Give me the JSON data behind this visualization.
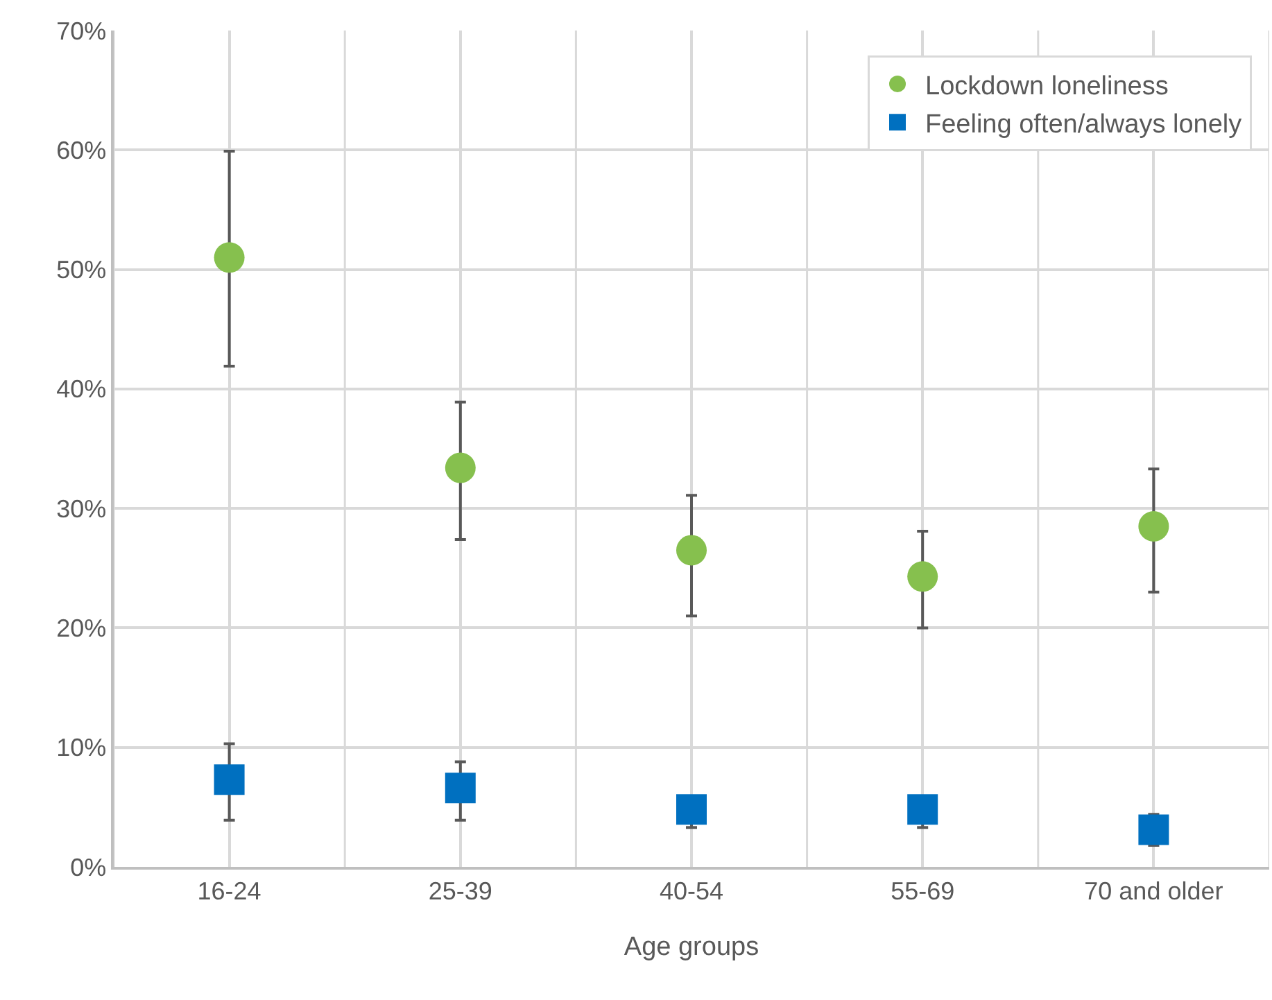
{
  "chart_data": {
    "type": "scatter",
    "xlabel": "Age groups",
    "categories": [
      "16-24",
      "25-39",
      "40-54",
      "55-69",
      "70 and older"
    ],
    "series": [
      {
        "name": "Lockdown loneliness",
        "color": "#86c04e",
        "marker": "circle",
        "values": [
          51,
          33.4,
          26.5,
          24.3,
          28.5
        ],
        "errors": [
          [
            41.9,
            59.9
          ],
          [
            27.4,
            38.9
          ],
          [
            21,
            31.1
          ],
          [
            20,
            28.1
          ],
          [
            23,
            33.3
          ]
        ]
      },
      {
        "name": "Feeling often/always lonely",
        "color": "#0070c0",
        "marker": "square",
        "values": [
          7.3,
          6.6,
          4.8,
          4.8,
          3.1
        ],
        "errors": [
          [
            3.9,
            10.3
          ],
          [
            3.9,
            8.8
          ],
          [
            3.3,
            5.8
          ],
          [
            3.3,
            5.8
          ],
          [
            1.8,
            4.4
          ]
        ]
      }
    ],
    "ylim": [
      0,
      70
    ],
    "yticks": [
      {
        "value": 0,
        "label": "0%"
      },
      {
        "value": 10,
        "label": "10%"
      },
      {
        "value": 20,
        "label": "20%"
      },
      {
        "value": 30,
        "label": "30%"
      },
      {
        "value": 40,
        "label": "40%"
      },
      {
        "value": 50,
        "label": "50%"
      },
      {
        "value": 60,
        "label": "60%"
      },
      {
        "value": 70,
        "label": "70%"
      }
    ],
    "grid": true,
    "legend": "top right"
  }
}
